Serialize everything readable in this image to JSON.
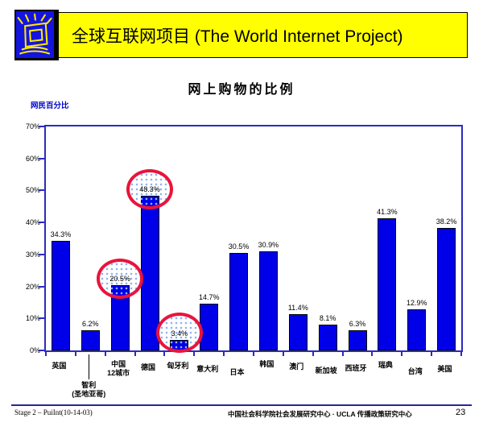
{
  "header": {
    "title": "全球互联网项目 (The World Internet Project)",
    "banner_color": "#FFFF00",
    "logo_color": "#1414E0",
    "logo_icon": "monitor-sketch-icon"
  },
  "slide": {
    "title": "网上购物的比例"
  },
  "chart_data": {
    "type": "bar",
    "title": "网上购物的比例",
    "xlabel": "",
    "ylabel": "网民百分比",
    "ylim": [
      0,
      70
    ],
    "yticks": [
      "0%",
      "10%",
      "20%",
      "30%",
      "40%",
      "50%",
      "60%",
      "70%"
    ],
    "grid": false,
    "legend": false,
    "categories": [
      "英国",
      "智利\n(圣地亚哥)",
      "中国\n12城市",
      "德国",
      "匈牙利",
      "意大利",
      "日本",
      "韩国",
      "澳门",
      "新加坡",
      "西班牙",
      "瑞典",
      "台湾",
      "美国"
    ],
    "values": [
      34.3,
      6.2,
      20.5,
      48.3,
      3.4,
      14.7,
      30.5,
      30.9,
      11.4,
      8.1,
      6.3,
      41.3,
      12.9,
      38.2
    ],
    "value_labels": [
      "34.3%",
      "6.2%",
      "20.5%",
      "48.3%",
      "3.4%",
      "14.7%",
      "30.5%",
      "30.9%",
      "11.4%",
      "8.1%",
      "6.3%",
      "41.3%",
      "12.9%",
      "38.2%"
    ],
    "annotated_indices": [
      2,
      3,
      4
    ],
    "leader_line_index": 1,
    "label_dy": [
      9,
      33,
      7,
      11,
      9,
      13,
      17,
      7,
      10,
      15,
      12,
      8,
      16,
      13
    ],
    "colors": {
      "bar": "#0000E8",
      "axis": "#2B2BC0",
      "annotation_ring": "#E8143C",
      "y_axis_title": "#0000CC"
    }
  },
  "footer": {
    "left": "Stage 2 – PuiInt(10-14-03)",
    "center": "中国社会科学院社会发展研究中心 · UCLA 传播政策研究中心",
    "page": "23"
  }
}
